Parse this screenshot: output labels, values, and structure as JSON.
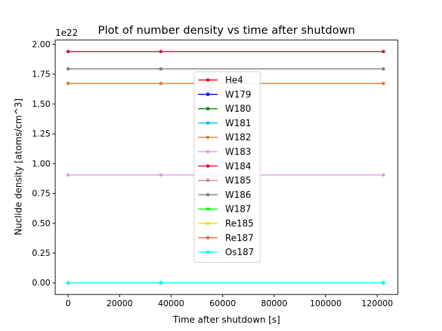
{
  "chart_data": {
    "type": "line",
    "title": "Plot of number density vs time after shutdown",
    "xlabel": "Time after shutdown [s]",
    "ylabel": "Nuclide density [atoms/cm^3]",
    "y_multiplier_label": "1e22",
    "y_scale_factor": 1e+22,
    "xlim": [
      -5000,
      128000
    ],
    "ylim": [
      -0.097,
      2.037
    ],
    "x_ticks": [
      0,
      20000,
      40000,
      60000,
      80000,
      100000,
      120000
    ],
    "x_tick_labels": [
      "0",
      "20000",
      "40000",
      "60000",
      "80000",
      "100000",
      "120000"
    ],
    "y_ticks": [
      0.0,
      0.25,
      0.5,
      0.75,
      1.0,
      1.25,
      1.5,
      1.75,
      2.0
    ],
    "y_tick_labels": [
      "0.00",
      "0.25",
      "0.50",
      "0.75",
      "1.00",
      "1.25",
      "1.50",
      "1.75",
      "2.00"
    ],
    "grid": false,
    "legend_position": "center",
    "x": [
      0,
      36000,
      122400
    ],
    "series": [
      {
        "name": "He4",
        "color": "#ff0000",
        "values": [
          0.0,
          0.0,
          0.0
        ]
      },
      {
        "name": "W179",
        "color": "#0000ff",
        "values": [
          0.0,
          0.0,
          0.0
        ]
      },
      {
        "name": "W180",
        "color": "#008000",
        "values": [
          0.0,
          0.0,
          0.0
        ]
      },
      {
        "name": "W181",
        "color": "#00bfff",
        "values": [
          0.0,
          0.0,
          0.0
        ]
      },
      {
        "name": "W182",
        "color": "#cd853f",
        "values": [
          1.673,
          1.673,
          1.673
        ]
      },
      {
        "name": "W183",
        "color": "#dda0dd",
        "values": [
          0.905,
          0.905,
          0.905
        ]
      },
      {
        "name": "W184",
        "color": "#dc143c",
        "values": [
          1.94,
          1.94,
          1.94
        ]
      },
      {
        "name": "W185",
        "color": "#bc8f8f",
        "values": [
          0.0,
          0.0,
          0.0
        ]
      },
      {
        "name": "W186",
        "color": "#808080",
        "values": [
          1.795,
          1.795,
          1.795
        ]
      },
      {
        "name": "W187",
        "color": "#00ff00",
        "values": [
          0.0,
          0.0,
          0.0
        ]
      },
      {
        "name": "Re185",
        "color": "#ffd700",
        "values": [
          0.0,
          0.0,
          0.0
        ]
      },
      {
        "name": "Re187",
        "color": "#ff6347",
        "values": [
          0.0,
          0.0,
          0.0
        ]
      },
      {
        "name": "Os187",
        "color": "#00ffff",
        "values": [
          0.0,
          0.0,
          0.0
        ]
      }
    ]
  }
}
